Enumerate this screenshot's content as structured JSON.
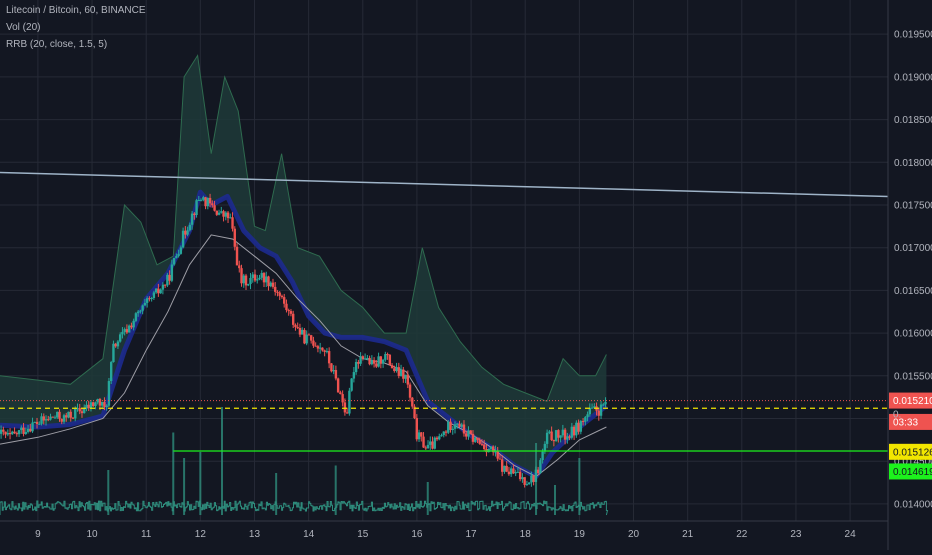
{
  "legend": {
    "symbol": "Litecoin / Bitcoin, 60, BINANCE",
    "volume": "Vol (20)",
    "indicator": "RRB (20, close, 1.5, 5)"
  },
  "colors": {
    "background": "#131722",
    "grid": "#262a36",
    "up_candle": "#26a69a",
    "down_candle": "#ef5350",
    "band_fill": "#1f3a38",
    "band_edge": "#2e6b4f",
    "band_core": "#1d2a8f",
    "sma": "#9e9ea6",
    "trendline": "#9fb4c8",
    "dashed_level": "#f2e600",
    "support_level": "#1cf21c",
    "volume": "#2e8c7c",
    "label_red": "#ef5350",
    "label_yellow": "#f2e600",
    "label_green": "#1cf21c"
  },
  "chart_data": {
    "type": "candlestick",
    "x_axis": {
      "ticks": [
        "9",
        "10",
        "11",
        "12",
        "13",
        "14",
        "15",
        "16",
        "17",
        "18",
        "19",
        "20",
        "21",
        "22",
        "23",
        "24"
      ],
      "range": [
        8.3,
        24.7
      ]
    },
    "y_axis": {
      "ticks": [
        "0.014000",
        "0.014500",
        "0.015000",
        "0.015500",
        "0.016000",
        "0.016500",
        "0.017000",
        "0.017500",
        "0.018000",
        "0.018500",
        "0.019000",
        "0.019500"
      ],
      "range": [
        0.0138,
        0.0199
      ]
    },
    "price_path": [
      {
        "x": 8.3,
        "y": 0.01482
      },
      {
        "x": 8.5,
        "y": 0.01478
      },
      {
        "x": 8.7,
        "y": 0.01486
      },
      {
        "x": 8.9,
        "y": 0.01493
      },
      {
        "x": 9.1,
        "y": 0.01497
      },
      {
        "x": 9.3,
        "y": 0.01502
      },
      {
        "x": 9.5,
        "y": 0.015
      },
      {
        "x": 9.7,
        "y": 0.01507
      },
      {
        "x": 9.9,
        "y": 0.01512
      },
      {
        "x": 10.1,
        "y": 0.0152
      },
      {
        "x": 10.25,
        "y": 0.0151
      },
      {
        "x": 10.4,
        "y": 0.01585
      },
      {
        "x": 10.6,
        "y": 0.016
      },
      {
        "x": 10.8,
        "y": 0.01618
      },
      {
        "x": 11.0,
        "y": 0.01633
      },
      {
        "x": 11.2,
        "y": 0.01647
      },
      {
        "x": 11.4,
        "y": 0.01662
      },
      {
        "x": 11.6,
        "y": 0.017
      },
      {
        "x": 11.8,
        "y": 0.01732
      },
      {
        "x": 12.0,
        "y": 0.0176
      },
      {
        "x": 12.2,
        "y": 0.01748
      },
      {
        "x": 12.4,
        "y": 0.01738
      },
      {
        "x": 12.55,
        "y": 0.01735
      },
      {
        "x": 12.65,
        "y": 0.01695
      },
      {
        "x": 12.75,
        "y": 0.0166
      },
      {
        "x": 12.9,
        "y": 0.01662
      },
      {
        "x": 13.1,
        "y": 0.01668
      },
      {
        "x": 13.3,
        "y": 0.0166
      },
      {
        "x": 13.5,
        "y": 0.0164
      },
      {
        "x": 13.7,
        "y": 0.01615
      },
      {
        "x": 13.9,
        "y": 0.01595
      },
      {
        "x": 14.1,
        "y": 0.0159
      },
      {
        "x": 14.3,
        "y": 0.0158
      },
      {
        "x": 14.5,
        "y": 0.01545
      },
      {
        "x": 14.7,
        "y": 0.01505
      },
      {
        "x": 14.85,
        "y": 0.01565
      },
      {
        "x": 15.0,
        "y": 0.01575
      },
      {
        "x": 15.2,
        "y": 0.0156
      },
      {
        "x": 15.4,
        "y": 0.01575
      },
      {
        "x": 15.6,
        "y": 0.01555
      },
      {
        "x": 15.8,
        "y": 0.01548
      },
      {
        "x": 16.0,
        "y": 0.0148
      },
      {
        "x": 16.2,
        "y": 0.01465
      },
      {
        "x": 16.4,
        "y": 0.01475
      },
      {
        "x": 16.6,
        "y": 0.01492
      },
      {
        "x": 16.75,
        "y": 0.01498
      },
      {
        "x": 16.85,
        "y": 0.01485
      },
      {
        "x": 17.0,
        "y": 0.01478
      },
      {
        "x": 17.2,
        "y": 0.0147
      },
      {
        "x": 17.4,
        "y": 0.01462
      },
      {
        "x": 17.6,
        "y": 0.0144
      },
      {
        "x": 17.8,
        "y": 0.01435
      },
      {
        "x": 18.0,
        "y": 0.01428
      },
      {
        "x": 18.15,
        "y": 0.0143
      },
      {
        "x": 18.25,
        "y": 0.01442
      },
      {
        "x": 18.4,
        "y": 0.01478
      },
      {
        "x": 18.6,
        "y": 0.0148
      },
      {
        "x": 18.8,
        "y": 0.0148
      },
      {
        "x": 19.0,
        "y": 0.01492
      },
      {
        "x": 19.2,
        "y": 0.01508
      },
      {
        "x": 19.4,
        "y": 0.0151
      },
      {
        "x": 19.5,
        "y": 0.01521
      }
    ],
    "band_upper": [
      {
        "x": 8.3,
        "y": 0.0155
      },
      {
        "x": 9.0,
        "y": 0.01545
      },
      {
        "x": 9.6,
        "y": 0.0154
      },
      {
        "x": 10.2,
        "y": 0.0157
      },
      {
        "x": 10.6,
        "y": 0.0175
      },
      {
        "x": 10.9,
        "y": 0.0173
      },
      {
        "x": 11.2,
        "y": 0.0168
      },
      {
        "x": 11.5,
        "y": 0.0169
      },
      {
        "x": 11.7,
        "y": 0.019
      },
      {
        "x": 11.95,
        "y": 0.01925
      },
      {
        "x": 12.2,
        "y": 0.0181
      },
      {
        "x": 12.45,
        "y": 0.019
      },
      {
        "x": 12.7,
        "y": 0.0186
      },
      {
        "x": 13.0,
        "y": 0.01725
      },
      {
        "x": 13.2,
        "y": 0.0172
      },
      {
        "x": 13.5,
        "y": 0.0181
      },
      {
        "x": 13.8,
        "y": 0.017
      },
      {
        "x": 14.2,
        "y": 0.0169
      },
      {
        "x": 14.6,
        "y": 0.0165
      },
      {
        "x": 15.0,
        "y": 0.0163
      },
      {
        "x": 15.4,
        "y": 0.016
      },
      {
        "x": 15.8,
        "y": 0.016
      },
      {
        "x": 16.1,
        "y": 0.017
      },
      {
        "x": 16.4,
        "y": 0.0163
      },
      {
        "x": 16.8,
        "y": 0.0159
      },
      {
        "x": 17.2,
        "y": 0.0156
      },
      {
        "x": 17.6,
        "y": 0.0154
      },
      {
        "x": 18.0,
        "y": 0.0153
      },
      {
        "x": 18.4,
        "y": 0.0152
      },
      {
        "x": 18.7,
        "y": 0.0157
      },
      {
        "x": 19.0,
        "y": 0.0155
      },
      {
        "x": 19.3,
        "y": 0.0155
      },
      {
        "x": 19.5,
        "y": 0.01575
      }
    ],
    "band_core": [
      {
        "x": 8.3,
        "y": 0.01492
      },
      {
        "x": 9.0,
        "y": 0.0149
      },
      {
        "x": 9.6,
        "y": 0.01493
      },
      {
        "x": 10.2,
        "y": 0.01503
      },
      {
        "x": 10.6,
        "y": 0.0158
      },
      {
        "x": 11.0,
        "y": 0.0164
      },
      {
        "x": 11.4,
        "y": 0.0167
      },
      {
        "x": 11.8,
        "y": 0.0172
      },
      {
        "x": 12.0,
        "y": 0.01765
      },
      {
        "x": 12.2,
        "y": 0.0175
      },
      {
        "x": 12.5,
        "y": 0.0176
      },
      {
        "x": 12.8,
        "y": 0.0172
      },
      {
        "x": 13.1,
        "y": 0.017
      },
      {
        "x": 13.4,
        "y": 0.0169
      },
      {
        "x": 13.7,
        "y": 0.0166
      },
      {
        "x": 14.0,
        "y": 0.0162
      },
      {
        "x": 14.3,
        "y": 0.016
      },
      {
        "x": 14.6,
        "y": 0.01595
      },
      {
        "x": 15.0,
        "y": 0.01595
      },
      {
        "x": 15.4,
        "y": 0.0159
      },
      {
        "x": 15.8,
        "y": 0.0158
      },
      {
        "x": 16.2,
        "y": 0.0152
      },
      {
        "x": 16.6,
        "y": 0.015
      },
      {
        "x": 17.0,
        "y": 0.0148
      },
      {
        "x": 17.4,
        "y": 0.01465
      },
      {
        "x": 17.8,
        "y": 0.01445
      },
      {
        "x": 18.2,
        "y": 0.01432
      },
      {
        "x": 18.5,
        "y": 0.0146
      },
      {
        "x": 18.8,
        "y": 0.01478
      },
      {
        "x": 19.1,
        "y": 0.01495
      },
      {
        "x": 19.5,
        "y": 0.01515
      }
    ],
    "sma": [
      {
        "x": 8.3,
        "y": 0.0147
      },
      {
        "x": 9.0,
        "y": 0.01478
      },
      {
        "x": 9.6,
        "y": 0.01488
      },
      {
        "x": 10.2,
        "y": 0.015
      },
      {
        "x": 10.6,
        "y": 0.0153
      },
      {
        "x": 11.0,
        "y": 0.0158
      },
      {
        "x": 11.4,
        "y": 0.01625
      },
      {
        "x": 11.8,
        "y": 0.0168
      },
      {
        "x": 12.2,
        "y": 0.01715
      },
      {
        "x": 12.6,
        "y": 0.0171
      },
      {
        "x": 13.0,
        "y": 0.0169
      },
      {
        "x": 13.4,
        "y": 0.0167
      },
      {
        "x": 13.8,
        "y": 0.0164
      },
      {
        "x": 14.2,
        "y": 0.01615
      },
      {
        "x": 14.6,
        "y": 0.01585
      },
      {
        "x": 15.0,
        "y": 0.0157
      },
      {
        "x": 15.4,
        "y": 0.01565
      },
      {
        "x": 15.8,
        "y": 0.01555
      },
      {
        "x": 16.2,
        "y": 0.01515
      },
      {
        "x": 16.6,
        "y": 0.01495
      },
      {
        "x": 17.0,
        "y": 0.01482
      },
      {
        "x": 17.4,
        "y": 0.01465
      },
      {
        "x": 17.8,
        "y": 0.01445
      },
      {
        "x": 18.2,
        "y": 0.01432
      },
      {
        "x": 18.6,
        "y": 0.01452
      },
      {
        "x": 19.0,
        "y": 0.01475
      },
      {
        "x": 19.5,
        "y": 0.0149
      }
    ],
    "trendline": {
      "from": {
        "x": 8.3,
        "y": 0.01788
      },
      "to": {
        "x": 24.7,
        "y": 0.0176
      }
    },
    "levels": [
      {
        "name": "dashed-yellow",
        "y": 0.01512,
        "from_x": 8.3
      },
      {
        "name": "support-green",
        "y": 0.01462,
        "from_x": 11.5
      },
      {
        "name": "last-price-dotted",
        "y": 0.01521,
        "from_x": 8.3
      }
    ],
    "price_labels": [
      {
        "text": "0.015210",
        "y": 0.01521,
        "color": "red"
      },
      {
        "text": "03:33",
        "y": 0.01496,
        "color": "red"
      },
      {
        "text": "0.015126",
        "y": 0.01461,
        "color": "yellow"
      },
      {
        "text": "0.014619",
        "y": 0.01438,
        "color": "green"
      }
    ],
    "partial_label": "0.",
    "volume_spikes": [
      {
        "x": 11.5,
        "v": 0.55
      },
      {
        "x": 11.7,
        "v": 0.38
      },
      {
        "x": 12.0,
        "v": 0.42
      },
      {
        "x": 12.4,
        "v": 0.72
      },
      {
        "x": 13.4,
        "v": 0.28
      },
      {
        "x": 14.5,
        "v": 0.33
      },
      {
        "x": 16.2,
        "v": 0.22
      },
      {
        "x": 18.2,
        "v": 0.48
      },
      {
        "x": 18.55,
        "v": 0.2
      },
      {
        "x": 19.0,
        "v": 0.38
      },
      {
        "x": 10.3,
        "v": 0.3
      }
    ]
  }
}
